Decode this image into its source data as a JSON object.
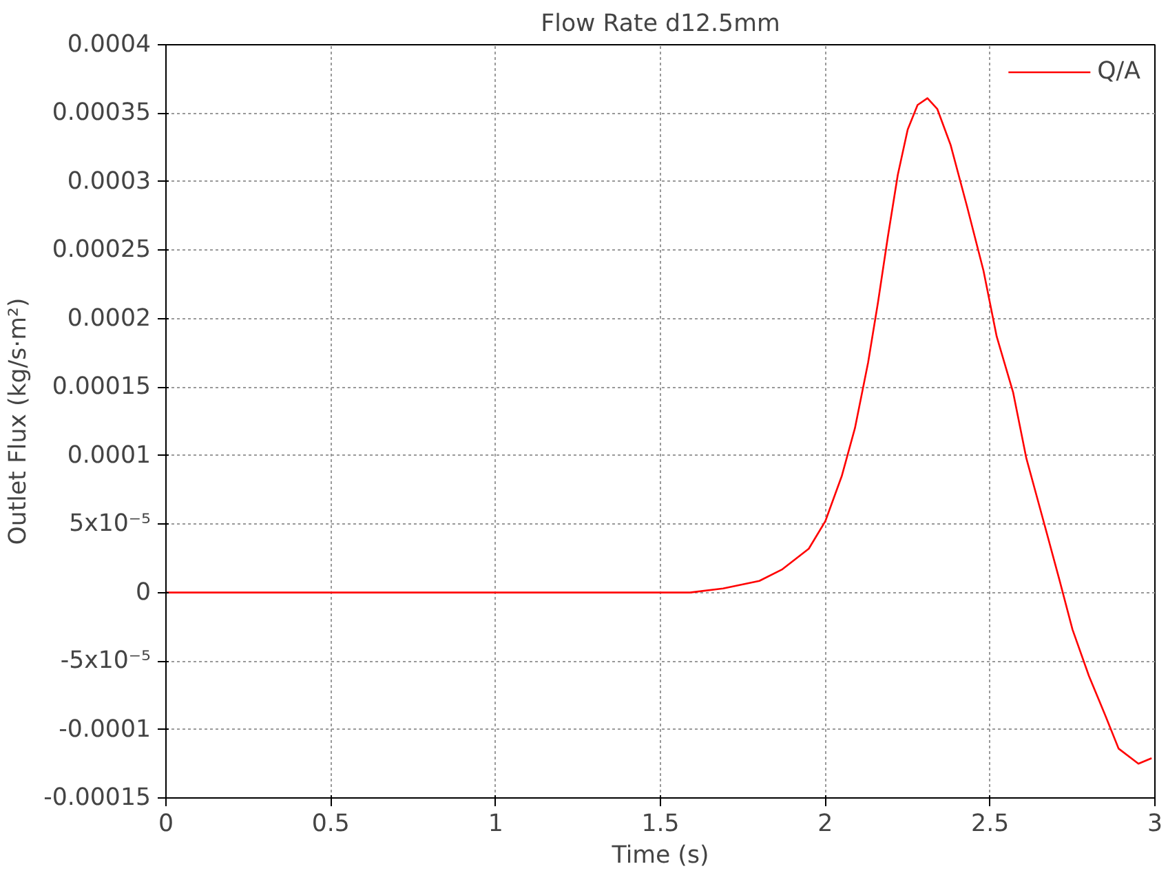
{
  "chart_data": {
    "type": "line",
    "title": "Flow Rate d12.5mm",
    "xlabel": "Time (s)",
    "ylabel": "Outlet Flux (kg/s·m²)",
    "xlim": [
      0,
      3
    ],
    "xticks": [
      0,
      0.5,
      1,
      1.5,
      2,
      2.5,
      3
    ],
    "ylim": [
      -0.00015,
      0.0004
    ],
    "yticks": [
      {
        "value": -0.00015,
        "label": "-0.00015"
      },
      {
        "value": -0.0001,
        "label": "-0.0001"
      },
      {
        "value": -5e-05,
        "label": "-5x10⁻⁵"
      },
      {
        "value": 0,
        "label": "0"
      },
      {
        "value": 5e-05,
        "label": "5x10⁻⁵"
      },
      {
        "value": 0.0001,
        "label": "0.0001"
      },
      {
        "value": 0.00015,
        "label": "0.00015"
      },
      {
        "value": 0.0002,
        "label": "0.0002"
      },
      {
        "value": 0.00025,
        "label": "0.00025"
      },
      {
        "value": 0.0003,
        "label": "0.0003"
      },
      {
        "value": 0.00035,
        "label": "0.00035"
      },
      {
        "value": 0.0004,
        "label": "0.0004"
      }
    ],
    "grid": true,
    "legend": "top right",
    "marker": "none",
    "line_style": "solid",
    "series": [
      {
        "name": "Q/A",
        "color": "#ff0000",
        "x": [
          0,
          0.5,
          1,
          1.5,
          1.59,
          1.69,
          1.8,
          1.87,
          1.95,
          2.0,
          2.05,
          2.09,
          2.13,
          2.16,
          2.19,
          2.22,
          2.25,
          2.28,
          2.31,
          2.34,
          2.38,
          2.43,
          2.48,
          2.52,
          2.57,
          2.61,
          2.66,
          2.71,
          2.75,
          2.8,
          2.85,
          2.89,
          2.95,
          2.99
        ],
        "values": [
          0,
          0,
          0,
          0,
          0,
          3e-06,
          8.5e-06,
          1.7e-05,
          3.2e-05,
          5.2e-05,
          8.5e-05,
          0.00012,
          0.000168,
          0.000212,
          0.00026,
          0.000305,
          0.000338,
          0.000356,
          0.000361,
          0.000353,
          0.000327,
          0.000282,
          0.000235,
          0.000187,
          0.000146,
          9.8e-05,
          5.4e-05,
          9.6e-06,
          -2.7e-05,
          -6.1e-05,
          -9e-05,
          -0.000114,
          -0.000125,
          -0.000121
        ]
      }
    ]
  }
}
